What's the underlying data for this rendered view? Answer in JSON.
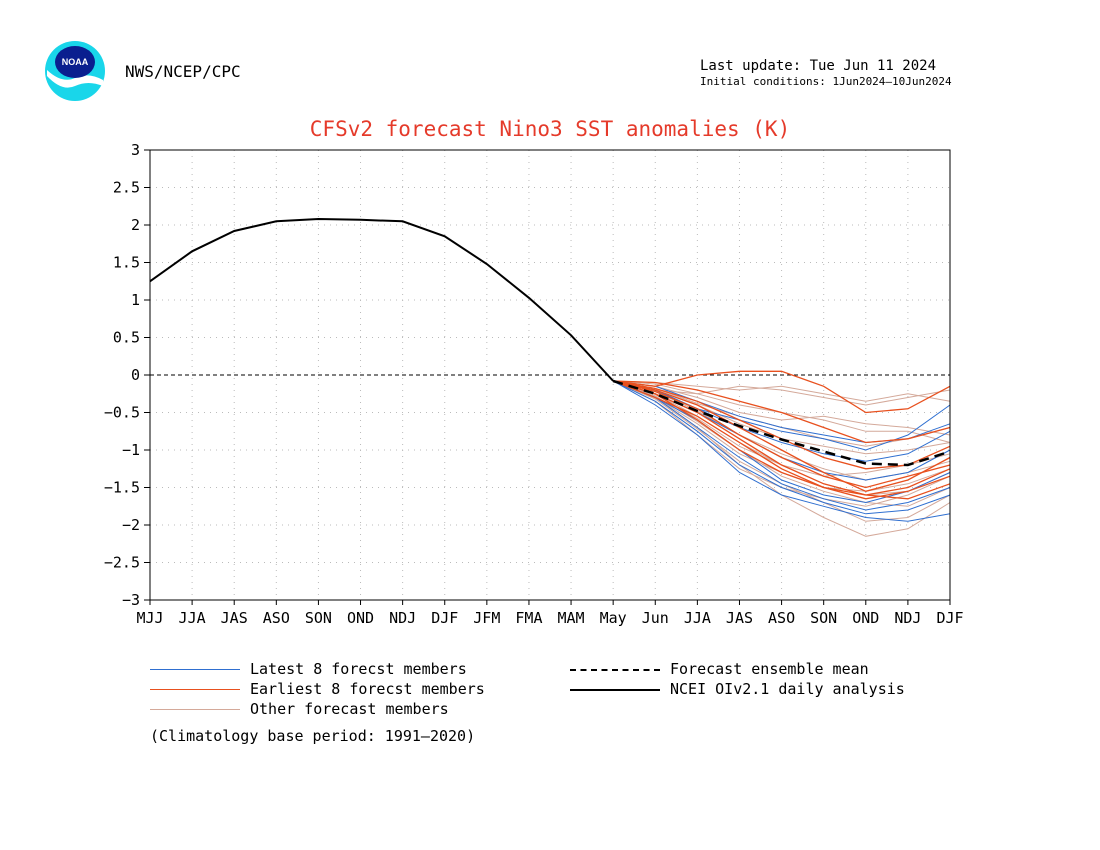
{
  "header": {
    "agency": "NWS/NCEP/CPC",
    "last_update": "Last update: Tue Jun 11 2024",
    "initial_conditions": "Initial conditions: 1Jun2024—10Jun2024",
    "logo_text": "NOAA"
  },
  "colors": {
    "title": "#e53a2a",
    "latest": "#2f6fd0",
    "earliest": "#e8501e",
    "other": "#d4a99a",
    "obs": "#000000",
    "mean": "#000000",
    "grid": "#bbbbbb"
  },
  "legend": {
    "latest": "Latest 8 forecst members",
    "earliest": "Earliest 8 forecst members",
    "other": "Other forecast members",
    "mean": "Forecast ensemble mean",
    "obs": "NCEI OIv2.1 daily analysis"
  },
  "footnote": "(Climatology base period: 1991—2020)",
  "chart_data": {
    "type": "line",
    "title": "CFSv2 forecast Nino3 SST anomalies (K)",
    "xlabel": "",
    "ylabel": "",
    "categories": [
      "MJJ",
      "JJA",
      "JAS",
      "ASO",
      "SON",
      "OND",
      "NDJ",
      "DJF",
      "JFM",
      "FMA",
      "MAM",
      "May",
      "Jun",
      "JJA",
      "JAS",
      "ASO",
      "SON",
      "OND",
      "NDJ",
      "DJF"
    ],
    "ylim": [
      -3,
      3
    ],
    "yticks": [
      "3",
      "2.5",
      "2",
      "1.5",
      "1",
      "0.5",
      "0",
      "−0.5",
      "−1",
      "−1.5",
      "−2",
      "−2.5",
      "−3"
    ],
    "ytick_values": [
      3,
      2.5,
      2,
      1.5,
      1,
      0.5,
      0,
      -0.5,
      -1,
      -1.5,
      -2,
      -2.5,
      -3
    ],
    "grid": true,
    "observed": {
      "name": "NCEI OIv2.1 daily analysis",
      "x_index": [
        0,
        1,
        2,
        3,
        4,
        5,
        6,
        7,
        8,
        9,
        10,
        11
      ],
      "values": [
        1.25,
        1.65,
        1.92,
        2.05,
        2.08,
        2.07,
        2.05,
        1.85,
        1.48,
        1.03,
        0.53,
        -0.08
      ]
    },
    "ensemble_mean": {
      "name": "Forecast ensemble mean",
      "x_index": [
        11,
        12,
        13,
        14,
        15,
        16,
        17,
        18,
        19
      ],
      "values": [
        -0.08,
        -0.25,
        -0.48,
        -0.68,
        -0.86,
        -1.02,
        -1.18,
        -1.2,
        -1.02
      ]
    },
    "forecast_x_index": [
      11,
      12,
      13,
      14,
      15,
      16,
      17,
      18,
      19
    ],
    "latest_members": [
      [
        -0.08,
        -0.3,
        -0.6,
        -1.0,
        -1.4,
        -1.6,
        -1.7,
        -1.55,
        -1.3
      ],
      [
        -0.08,
        -0.2,
        -0.45,
        -0.6,
        -0.75,
        -0.85,
        -1.0,
        -0.8,
        -0.4
      ],
      [
        -0.08,
        -0.25,
        -0.5,
        -0.8,
        -1.1,
        -1.3,
        -1.4,
        -1.3,
        -1.0
      ],
      [
        -0.08,
        -0.4,
        -0.8,
        -1.3,
        -1.6,
        -1.75,
        -1.9,
        -1.95,
        -1.85
      ],
      [
        -0.08,
        -0.15,
        -0.35,
        -0.55,
        -0.7,
        -0.8,
        -0.9,
        -0.85,
        -0.65
      ],
      [
        -0.08,
        -0.3,
        -0.7,
        -1.1,
        -1.45,
        -1.65,
        -1.8,
        -1.7,
        -1.5
      ],
      [
        -0.08,
        -0.2,
        -0.45,
        -0.7,
        -0.9,
        -1.05,
        -1.15,
        -1.05,
        -0.75
      ],
      [
        -0.08,
        -0.35,
        -0.75,
        -1.2,
        -1.5,
        -1.7,
        -1.85,
        -1.8,
        -1.6
      ]
    ],
    "earliest_members": [
      [
        -0.08,
        -0.15,
        0.0,
        0.05,
        0.05,
        -0.15,
        -0.5,
        -0.45,
        -0.15
      ],
      [
        -0.08,
        -0.25,
        -0.5,
        -0.85,
        -1.2,
        -1.45,
        -1.6,
        -1.5,
        -1.25
      ],
      [
        -0.08,
        -0.1,
        -0.2,
        -0.35,
        -0.5,
        -0.7,
        -0.9,
        -0.85,
        -0.7
      ],
      [
        -0.08,
        -0.3,
        -0.55,
        -0.9,
        -1.25,
        -1.5,
        -1.65,
        -1.55,
        -1.35
      ],
      [
        -0.08,
        -0.2,
        -0.4,
        -0.7,
        -1.0,
        -1.3,
        -1.55,
        -1.4,
        -1.1
      ],
      [
        -0.08,
        -0.25,
        -0.6,
        -1.0,
        -1.3,
        -1.5,
        -1.6,
        -1.65,
        -1.45
      ],
      [
        -0.08,
        -0.18,
        -0.35,
        -0.6,
        -0.85,
        -1.1,
        -1.25,
        -1.2,
        -0.95
      ],
      [
        -0.08,
        -0.22,
        -0.45,
        -0.8,
        -1.1,
        -1.35,
        -1.5,
        -1.35,
        -1.2
      ]
    ],
    "other_members": [
      [
        -0.08,
        -0.2,
        -0.25,
        -0.15,
        -0.2,
        -0.3,
        -0.4,
        -0.3,
        -0.2
      ],
      [
        -0.08,
        -0.3,
        -0.7,
        -1.2,
        -1.6,
        -1.9,
        -2.15,
        -2.05,
        -1.7
      ],
      [
        -0.08,
        -0.15,
        -0.3,
        -0.5,
        -0.6,
        -0.55,
        -0.65,
        -0.7,
        -0.8
      ],
      [
        -0.08,
        -0.25,
        -0.55,
        -0.9,
        -1.2,
        -1.35,
        -1.3,
        -1.2,
        -1.05
      ],
      [
        -0.08,
        -0.35,
        -0.8,
        -1.25,
        -1.5,
        -1.65,
        -1.75,
        -1.6,
        -1.35
      ],
      [
        -0.08,
        -0.1,
        -0.15,
        -0.2,
        -0.15,
        -0.25,
        -0.35,
        -0.25,
        -0.35
      ],
      [
        -0.08,
        -0.2,
        -0.4,
        -0.65,
        -0.85,
        -0.95,
        -1.05,
        -1.0,
        -0.9
      ],
      [
        -0.08,
        -0.28,
        -0.62,
        -1.0,
        -1.35,
        -1.55,
        -1.7,
        -1.75,
        -1.5
      ],
      [
        -0.08,
        -0.18,
        -0.38,
        -0.55,
        -0.7,
        -0.85,
        -0.95,
        -0.85,
        -0.7
      ],
      [
        -0.08,
        -0.32,
        -0.72,
        -1.15,
        -1.45,
        -1.7,
        -1.95,
        -1.9,
        -1.6
      ],
      [
        -0.08,
        -0.22,
        -0.48,
        -0.8,
        -1.05,
        -1.25,
        -1.4,
        -1.3,
        -1.15
      ],
      [
        -0.08,
        -0.12,
        -0.25,
        -0.4,
        -0.5,
        -0.6,
        -0.75,
        -0.75,
        -0.9
      ],
      [
        -0.08,
        -0.26,
        -0.58,
        -0.95,
        -1.2,
        -1.45,
        -1.6,
        -1.55,
        -1.3
      ],
      [
        -0.08,
        -0.3,
        -0.65,
        -1.05,
        -1.3,
        -1.5,
        -1.55,
        -1.45,
        -1.25
      ]
    ]
  }
}
